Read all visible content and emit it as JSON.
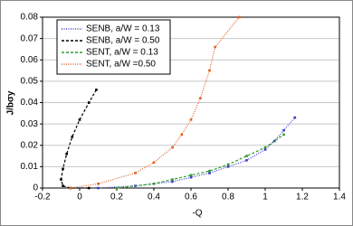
{
  "chart_data": {
    "type": "line",
    "xlabel": "-Q",
    "ylabel": "J/bσy",
    "xlim": [
      -0.2,
      1.4
    ],
    "xticks": [
      -0.2,
      0,
      0.2,
      0.4,
      0.6,
      0.8,
      1.0,
      1.2,
      1.4
    ],
    "ylim": [
      0,
      0.08
    ],
    "yticks": [
      0,
      0.01,
      0.02,
      0.03,
      0.04,
      0.05,
      0.06,
      0.07,
      0.08
    ],
    "grid": true,
    "legend": "upper left",
    "series": [
      {
        "name": "SENB, a/W = 0.13",
        "color": "#3a3ad0",
        "linestyle": "dotted",
        "x": [
          0.1,
          0.3,
          0.5,
          0.6,
          0.7,
          0.8,
          0.9,
          1.0,
          1.05,
          1.1,
          1.16
        ],
        "values": [
          0,
          0.001,
          0.003,
          0.005,
          0.007,
          0.01,
          0.013,
          0.018,
          0.022,
          0.027,
          0.033
        ]
      },
      {
        "name": "SENB, a/W = 0.50",
        "color": "#000000",
        "linestyle": "dashed",
        "x": [
          0.09,
          0.05,
          0.0,
          -0.04,
          -0.07,
          -0.09,
          -0.1,
          -0.09,
          -0.05,
          0.05
        ],
        "values": [
          0.046,
          0.04,
          0.032,
          0.024,
          0.016,
          0.009,
          0.004,
          0.001,
          0,
          0
        ]
      },
      {
        "name": "SENT, a/W = 0.13",
        "color": "#2e9a2e",
        "linestyle": "dashed",
        "x": [
          0.2,
          0.4,
          0.5,
          0.6,
          0.7,
          0.8,
          0.9,
          1.0,
          1.1
        ],
        "values": [
          0,
          0.002,
          0.004,
          0.006,
          0.008,
          0.011,
          0.015,
          0.019,
          0.025
        ]
      },
      {
        "name": "SENT, a/W =0.50",
        "color": "#e06020",
        "linestyle": "dotted",
        "x": [
          -0.05,
          0.1,
          0.3,
          0.4,
          0.5,
          0.55,
          0.6,
          0.65,
          0.7,
          0.73,
          0.86
        ],
        "values": [
          0,
          0.002,
          0.007,
          0.012,
          0.019,
          0.025,
          0.032,
          0.042,
          0.055,
          0.066,
          0.08
        ]
      }
    ]
  }
}
